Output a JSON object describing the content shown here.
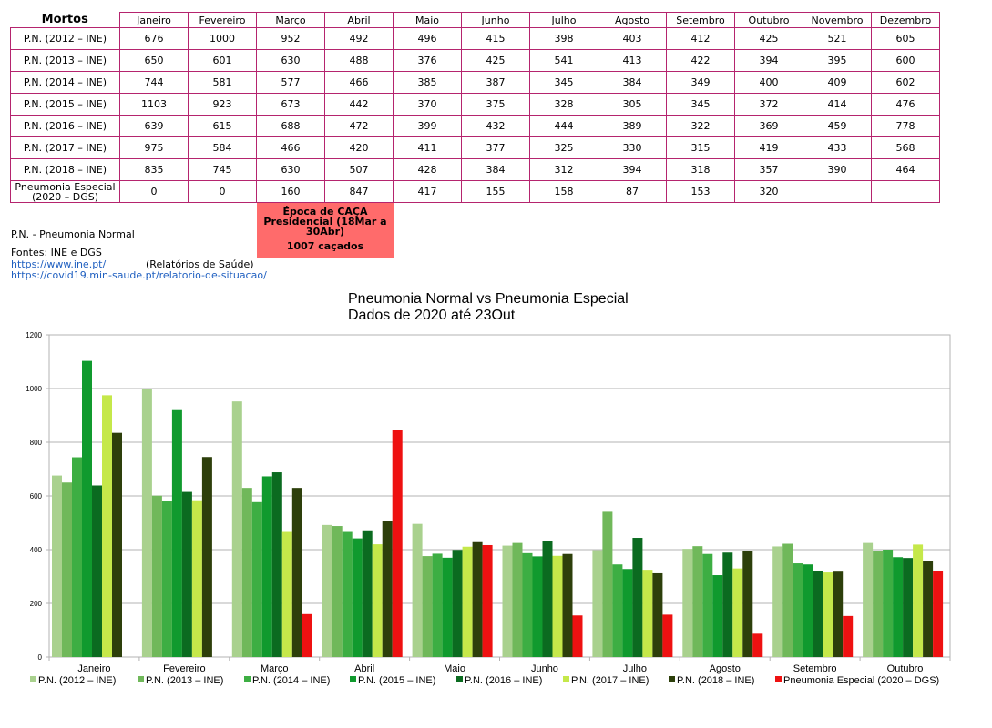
{
  "table": {
    "corner": "Mortos",
    "months": [
      "Janeiro",
      "Fevereiro",
      "Março",
      "Abril",
      "Maio",
      "Junho",
      "Julho",
      "Agosto",
      "Setembro",
      "Outubro",
      "Novembro",
      "Dezembro"
    ],
    "rows": [
      {
        "label": "P.N. (2012 – INE)",
        "values": [
          "676",
          "1000",
          "952",
          "492",
          "496",
          "415",
          "398",
          "403",
          "412",
          "425",
          "521",
          "605"
        ]
      },
      {
        "label": "P.N. (2013 – INE)",
        "values": [
          "650",
          "601",
          "630",
          "488",
          "376",
          "425",
          "541",
          "413",
          "422",
          "394",
          "395",
          "600"
        ]
      },
      {
        "label": "P.N. (2014 – INE)",
        "values": [
          "744",
          "581",
          "577",
          "466",
          "385",
          "387",
          "345",
          "384",
          "349",
          "400",
          "409",
          "602"
        ]
      },
      {
        "label": "P.N. (2015 – INE)",
        "values": [
          "1103",
          "923",
          "673",
          "442",
          "370",
          "375",
          "328",
          "305",
          "345",
          "372",
          "414",
          "476"
        ]
      },
      {
        "label": "P.N. (2016 – INE)",
        "values": [
          "639",
          "615",
          "688",
          "472",
          "399",
          "432",
          "444",
          "389",
          "322",
          "369",
          "459",
          "778"
        ]
      },
      {
        "label": "P.N. (2017 – INE)",
        "values": [
          "975",
          "584",
          "466",
          "420",
          "411",
          "377",
          "325",
          "330",
          "315",
          "419",
          "433",
          "568"
        ]
      },
      {
        "label": "P.N. (2018 – INE)",
        "values": [
          "835",
          "745",
          "630",
          "507",
          "428",
          "384",
          "312",
          "394",
          "318",
          "357",
          "390",
          "464"
        ]
      },
      {
        "label": "Pneumonia Especial (2020 – DGS)",
        "values": [
          "0",
          "0",
          "160",
          "847",
          "417",
          "155",
          "158",
          "87",
          "153",
          "320",
          "",
          ""
        ]
      }
    ]
  },
  "notes": {
    "pn": "P.N. - Pneumonia Normal",
    "fontes": "Fontes: INE e DGS",
    "link1": "https://www.ine.pt/",
    "relatorios": "(Relatórios de Saúde)",
    "link2": "https://covid19.min-saude.pt/relatorio-de-situacao/"
  },
  "epoca": {
    "title": "Época de CAÇA Presidencial (18Mar a 30Abr)",
    "count": "1007 caçados",
    "color": "#ff6b6b"
  },
  "chart_data": {
    "type": "bar",
    "title_line1": "Pneumonia Normal vs Pneumonia Especial",
    "title_line2": "Dados de 2020 até 23Out",
    "categories": [
      "Janeiro",
      "Fevereiro",
      "Março",
      "Abril",
      "Maio",
      "Junho",
      "Julho",
      "Agosto",
      "Setembro",
      "Outubro"
    ],
    "ylim": [
      0,
      1200
    ],
    "yticks": [
      0,
      200,
      400,
      600,
      800,
      1000,
      1200
    ],
    "grid": true,
    "legend_position": "bottom",
    "series": [
      {
        "name": "P.N. (2012 – INE)",
        "color": "#a9d18e",
        "values": [
          676,
          1000,
          952,
          492,
          496,
          415,
          398,
          403,
          412,
          425
        ]
      },
      {
        "name": "P.N. (2013 – INE)",
        "color": "#70b85a",
        "values": [
          650,
          601,
          630,
          488,
          376,
          425,
          541,
          413,
          422,
          394
        ]
      },
      {
        "name": "P.N. (2014 – INE)",
        "color": "#3dae43",
        "values": [
          744,
          581,
          577,
          466,
          385,
          387,
          345,
          384,
          349,
          400
        ]
      },
      {
        "name": "P.N. (2015 – INE)",
        "color": "#109a2e",
        "values": [
          1103,
          923,
          673,
          442,
          370,
          375,
          328,
          305,
          345,
          372
        ]
      },
      {
        "name": "P.N. (2016 – INE)",
        "color": "#0b6b20",
        "values": [
          639,
          615,
          688,
          472,
          399,
          432,
          444,
          389,
          322,
          369
        ]
      },
      {
        "name": "P.N. (2017 – INE)",
        "color": "#c5e84a",
        "values": [
          975,
          584,
          466,
          420,
          411,
          377,
          325,
          330,
          315,
          419
        ]
      },
      {
        "name": "P.N. (2018 – INE)",
        "color": "#2d3f0b",
        "values": [
          835,
          745,
          630,
          507,
          428,
          384,
          312,
          394,
          318,
          357
        ]
      },
      {
        "name": "Pneumonia Especial (2020 – DGS)",
        "color": "#ee1111",
        "values": [
          null,
          null,
          160,
          847,
          417,
          155,
          158,
          87,
          153,
          320
        ]
      }
    ]
  }
}
